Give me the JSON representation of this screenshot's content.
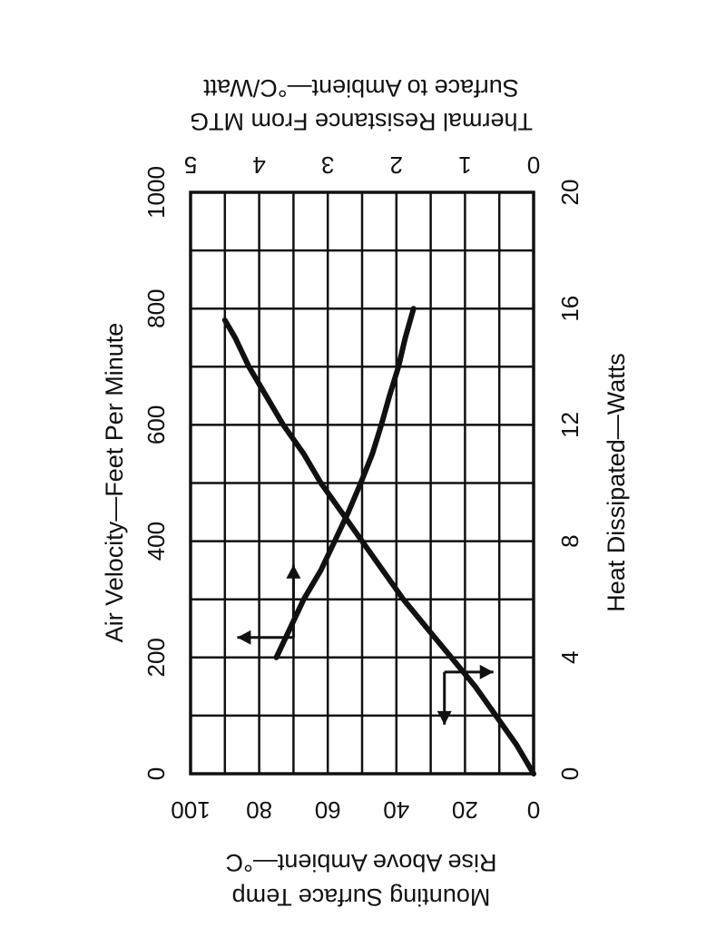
{
  "chart_data": {
    "type": "line",
    "orientation": "rotated-90-clockwise",
    "x_bottom_axis": {
      "label": "Heat Dissipated—Watts",
      "ticks": [
        0,
        4,
        8,
        12,
        16,
        20
      ],
      "range": [
        0,
        20
      ]
    },
    "x_top_axis": {
      "label": "Air Velocity—Feet Per Minute",
      "ticks": [
        0,
        200,
        400,
        600,
        800,
        1000
      ],
      "range": [
        0,
        1000
      ]
    },
    "y_left_axis": {
      "label_line1": "Mounting Surface Temp",
      "label_line2": "Rise Above Ambient—°C",
      "ticks": [
        0,
        20,
        40,
        60,
        80,
        100
      ],
      "range": [
        0,
        100
      ]
    },
    "y_right_axis": {
      "label_line1": "Thermal Resistance From MTG",
      "label_line2": "Surface to Ambient—°C/Watt",
      "ticks": [
        0,
        1,
        2,
        3,
        4,
        5
      ],
      "range": [
        0,
        5
      ]
    },
    "grid": true,
    "series": [
      {
        "x_axis": "bottom",
        "y_axis": "left",
        "points": [
          {
            "x": 0,
            "y": 0
          },
          {
            "x": 1,
            "y": 5
          },
          {
            "x": 2,
            "y": 11
          },
          {
            "x": 3,
            "y": 17
          },
          {
            "x": 4,
            "y": 24
          },
          {
            "x": 5,
            "y": 31
          },
          {
            "x": 6,
            "y": 38
          },
          {
            "x": 7,
            "y": 44
          },
          {
            "x": 8,
            "y": 50
          },
          {
            "x": 9,
            "y": 56
          },
          {
            "x": 10,
            "y": 62
          },
          {
            "x": 11,
            "y": 67
          },
          {
            "x": 12,
            "y": 73
          },
          {
            "x": 13,
            "y": 78
          },
          {
            "x": 14,
            "y": 83
          },
          {
            "x": 15,
            "y": 87
          },
          {
            "x": 15.6,
            "y": 90
          }
        ]
      },
      {
        "x_axis": "top",
        "y_axis": "right",
        "points": [
          {
            "x": 200,
            "y": 3.75
          },
          {
            "x": 250,
            "y": 3.55
          },
          {
            "x": 300,
            "y": 3.35
          },
          {
            "x": 350,
            "y": 3.1
          },
          {
            "x": 400,
            "y": 2.9
          },
          {
            "x": 450,
            "y": 2.7
          },
          {
            "x": 500,
            "y": 2.52
          },
          {
            "x": 550,
            "y": 2.35
          },
          {
            "x": 600,
            "y": 2.22
          },
          {
            "x": 650,
            "y": 2.1
          },
          {
            "x": 700,
            "y": 1.97
          },
          {
            "x": 750,
            "y": 1.87
          },
          {
            "x": 800,
            "y": 1.75
          }
        ]
      }
    ],
    "annotations": [
      {
        "type": "arrow-pair",
        "at": {
          "x": 3.5,
          "y": 26
        },
        "points_to": [
          "bottom",
          "left"
        ]
      },
      {
        "type": "arrow-pair",
        "at": {
          "x": 300,
          "y": 3.5
        },
        "points_to": [
          "top",
          "right"
        ]
      }
    ]
  }
}
